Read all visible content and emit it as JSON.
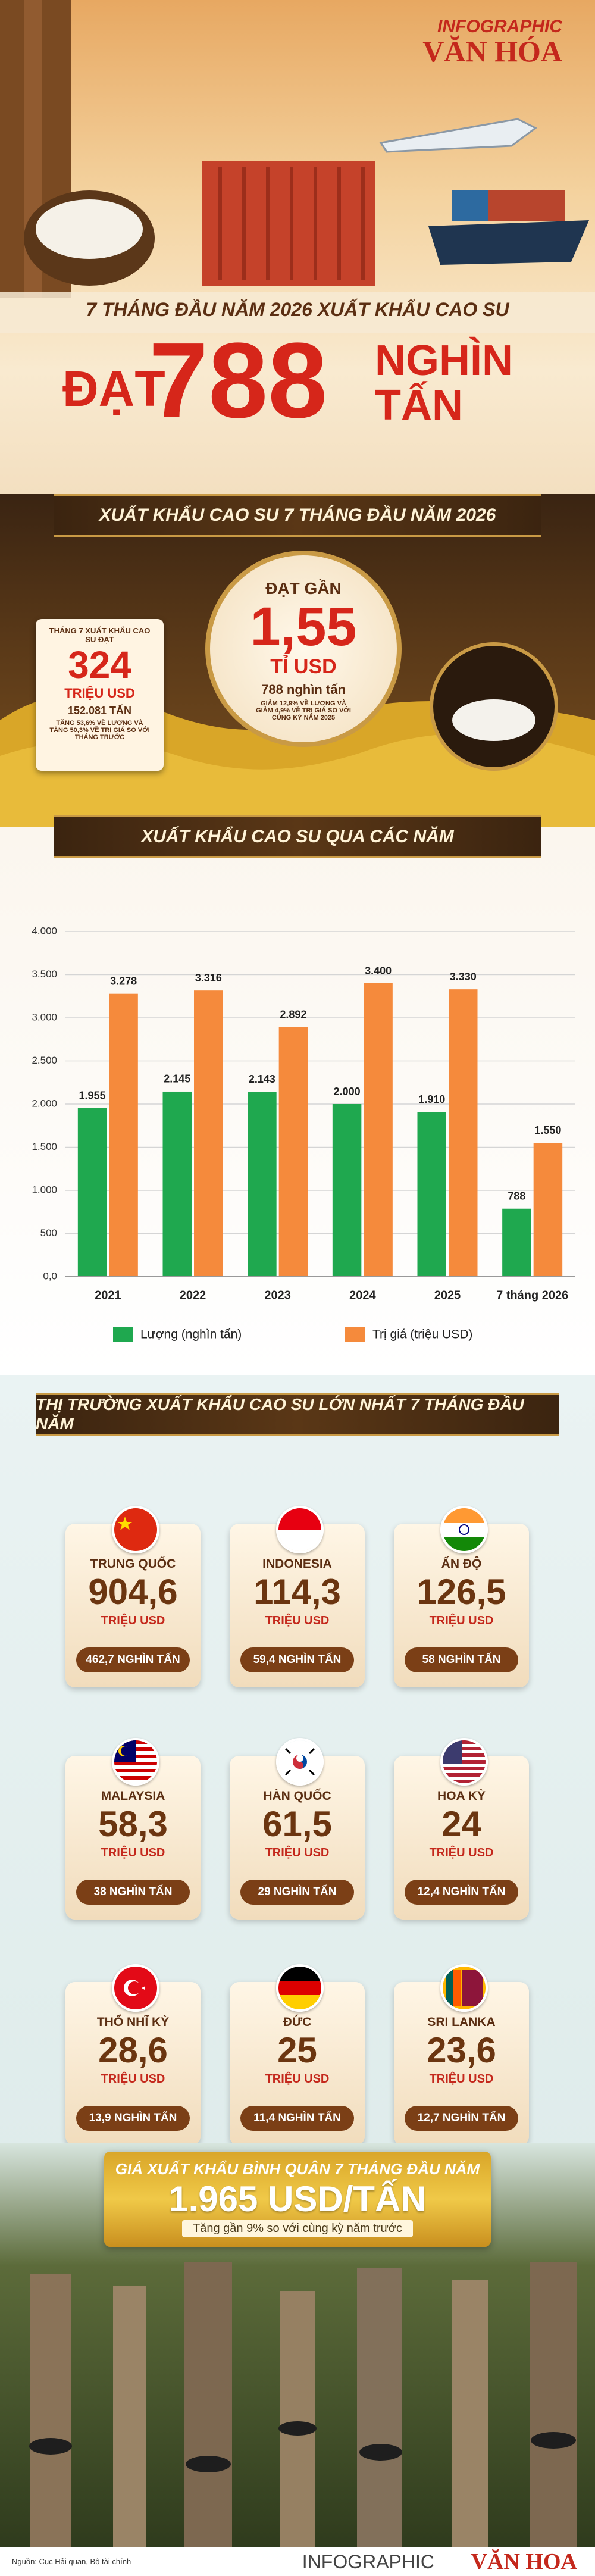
{
  "header": {
    "logo_top": "INFOGRAPHIC",
    "logo_bottom": "VĂN HÓA",
    "subtitle": "7 THÁNG ĐẦU NĂM 2026 XUẤT KHẨU CAO SU",
    "verb": "ĐẠT",
    "number": "788",
    "unit_top": "NGHÌN",
    "unit_bottom": "TẤN"
  },
  "overview": {
    "banner": "XUẤT KHẨU CAO SU 7 THÁNG ĐẦU NĂM 2026",
    "july": {
      "label": "THÁNG 7 XUẤT KHẨU CAO SU ĐẠT",
      "value": "324",
      "unit": "TRIỆU USD",
      "volume": "152.081 TẤN",
      "note": "TĂNG 53,6% VỀ LƯỢNG VÀ TĂNG 50,3% VỀ TRỊ GIÁ SO VỚI THÁNG TRƯỚC"
    },
    "total": {
      "label": "ĐẠT GẦN",
      "value": "1,55",
      "unit": "TỈ USD",
      "volume": "788 nghìn tấn",
      "note": "GIẢM 12,9% VỀ LƯỢNG VÀ GIẢM 4,9% VỀ TRỊ GIÁ SO VỚI CÙNG KỲ NĂM 2025"
    }
  },
  "chart_data": {
    "type": "bar",
    "title": "XUẤT KHẨU CAO SU QUA CÁC NĂM",
    "categories": [
      "2021",
      "2022",
      "2023",
      "2024",
      "2025",
      "7 tháng 2026"
    ],
    "series": [
      {
        "name": "Lượng (nghìn tấn)",
        "color": "#1fa84f",
        "values": [
          1955,
          2145,
          2143,
          2000,
          1910,
          788
        ],
        "value_labels": [
          "1.955",
          "2.145",
          "2.143",
          "2.000",
          "1.910",
          "788"
        ]
      },
      {
        "name": "Trị giá (triệu USD)",
        "color": "#f58a3c",
        "values": [
          3278,
          3316,
          2892,
          3400,
          3330,
          1550
        ],
        "value_labels": [
          "3.278",
          "3.316",
          "2.892",
          "3.400",
          "3.330",
          "1.550"
        ]
      }
    ],
    "ylim": [
      0,
      4000
    ],
    "yticks": [
      {
        "value": 0,
        "label": "0,0"
      },
      500,
      {
        "value": 1000,
        "label": "1.000"
      },
      {
        "value": 1500,
        "label": "1.500"
      },
      {
        "value": 2000,
        "label": "2.000"
      },
      {
        "value": 2500,
        "label": "2.500"
      },
      {
        "value": 3000,
        "label": "3.000"
      },
      {
        "value": 3500,
        "label": "3.500"
      },
      {
        "value": 4000,
        "label": "4.000"
      }
    ],
    "grid": true,
    "legend": "bottom"
  },
  "markets": {
    "title": "THỊ TRƯỜNG XUẤT KHẨU CAO SU LỚN NHẤT 7 THÁNG ĐẦU NĂM",
    "items": [
      {
        "name": "TRUNG QUỐC",
        "value": "904,6",
        "unit": "TRIỆU USD",
        "volume": "462,7 NGHÌN TẤN"
      },
      {
        "name": "INDONESIA",
        "value": "114,3",
        "unit": "TRIỆU USD",
        "volume": "59,4 NGHÌN TẤN"
      },
      {
        "name": "ẤN ĐỘ",
        "value": "126,5",
        "unit": "TRIỆU USD",
        "volume": "58 NGHÌN TẤN"
      },
      {
        "name": "MALAYSIA",
        "value": "58,3",
        "unit": "TRIỆU USD",
        "volume": "38 NGHÌN TẤN"
      },
      {
        "name": "HÀN QUỐC",
        "value": "61,5",
        "unit": "TRIỆU USD",
        "volume": "29 NGHÌN TẤN"
      },
      {
        "name": "HOA KỲ",
        "value": "24",
        "unit": "TRIỆU USD",
        "volume": "12,4 NGHÌN TẤN"
      },
      {
        "name": "THỔ NHĨ KỲ",
        "value": "28,6",
        "unit": "TRIỆU USD",
        "volume": "13,9 NGHÌN TẤN"
      },
      {
        "name": "ĐỨC",
        "value": "25",
        "unit": "TRIỆU USD",
        "volume": "11,4 NGHÌN TẤN"
      },
      {
        "name": "SRI LANKA",
        "value": "23,6",
        "unit": "TRIỆU USD",
        "volume": "12,7 NGHÌN TẤN"
      }
    ]
  },
  "price": {
    "label": "GIÁ XUẤT KHẨU BÌNH QUÂN 7 THÁNG ĐẦU NĂM",
    "value": "1.965 USD/TẤN",
    "note": "Tăng gần 9% so với cùng kỳ năm trước"
  },
  "footer": {
    "source": "Nguồn: Cục Hải quan, Bộ tài chính",
    "logo_top": "INFOGRAPHIC",
    "logo_bottom": "VĂN HOA"
  }
}
